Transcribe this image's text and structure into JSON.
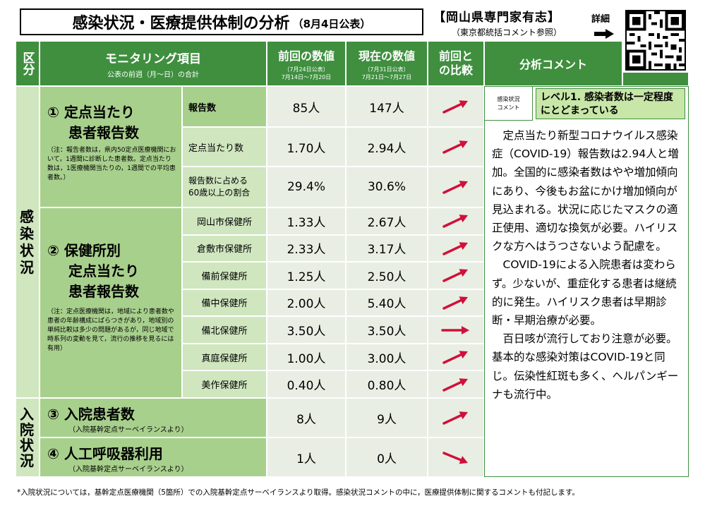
{
  "header": {
    "title": "感染状況・医療提供体制の分析",
    "date": "（8月4日公表）",
    "org": "【岡山県専門家有志】",
    "org_sub": "（東京都統括コメント参照）",
    "detail": "詳細"
  },
  "columns": {
    "category": "区分",
    "monitoring": "モニタリング項目",
    "monitoring_sub": "公表の前週（月～日）の合計",
    "previous": "前回の数値",
    "previous_sub1": "（7月24日公表）",
    "previous_sub2": "7月14日～7月20日",
    "current": "現在の数値",
    "current_sub1": "（7月31日公表）",
    "current_sub2": "7月21日～7月27日",
    "compare": "前回と\nの比較",
    "comment": "分析コメント"
  },
  "sections": {
    "infection": "感\n染\n状\n況",
    "hospital": "入\n院\n状\n況"
  },
  "item1": {
    "title": "① 定点当たり",
    "title2": "患者報告数",
    "note": "（注：報告者数は，県内50定点医療機関において，1週間に診断した患者数。定点当たり数は，1医療機関当たりの，1週間での平均患者数。）",
    "rows": [
      {
        "label": "報告数",
        "prev": "85人",
        "curr": "147人",
        "trend": "up"
      },
      {
        "label": "定点当たり数",
        "prev": "1.70人",
        "curr": "2.94人",
        "trend": "up"
      },
      {
        "label": "報告数に占める\n60歳以上の割合",
        "prev": "29.4%",
        "curr": "30.6%",
        "trend": "up"
      }
    ]
  },
  "item2": {
    "title": "② 保健所別",
    "title2": "定点当たり",
    "title3": "患者報告数",
    "note": "（注：定点医療機関は，地域により患者数や患者の年齢構成にばらつきがあり，地域別の単純比較は多少の問題があるが，同じ地域で時系列の変動を見て，流行の推移を見るには有用）",
    "rows": [
      {
        "label": "岡山市保健所",
        "prev": "1.33人",
        "curr": "2.67人",
        "trend": "up"
      },
      {
        "label": "倉敷市保健所",
        "prev": "2.33人",
        "curr": "3.17人",
        "trend": "up"
      },
      {
        "label": "備前保健所",
        "prev": "1.25人",
        "curr": "2.50人",
        "trend": "up"
      },
      {
        "label": "備中保健所",
        "prev": "2.00人",
        "curr": "5.40人",
        "trend": "up"
      },
      {
        "label": "備北保健所",
        "prev": "3.50人",
        "curr": "3.50人",
        "trend": "flat"
      },
      {
        "label": "真庭保健所",
        "prev": "1.00人",
        "curr": "3.00人",
        "trend": "up"
      },
      {
        "label": "美作保健所",
        "prev": "0.40人",
        "curr": "0.80人",
        "trend": "up"
      }
    ]
  },
  "item3": {
    "title": "③ 入院患者数",
    "note": "（入院基幹定点サーベイランスより）",
    "prev": "8人",
    "curr": "9人",
    "trend": "up"
  },
  "item4": {
    "title": "④ 人工呼吸器利用",
    "note": "（入院基幹定点サーベイランスより）",
    "prev": "1人",
    "curr": "0人",
    "trend": "down"
  },
  "comment": {
    "level_label": "感染状況\nコメント",
    "level_text": "レベル1. 感染者数は一定程度にとどまっている",
    "body": "　定点当たり新型コロナウイルス感染症（COVID-19）報告数は2.94人と増加。全国的に感染者数はやや増加傾向にあり、今後もお盆にかけ増加傾向が見込まれる。状況に応じたマスクの適正使用、適切な換気が必要。ハイリスクな方へはうつさないよう配慮を。\n　COVID-19による入院患者は変わらず。少ないが、重症化する患者は継続的に発生。ハイリスク患者は早期診断・早期治療が必要。\n　百日咳が流行しており注意が必要。基本的な感染対策はCOVID-19と同じ。伝染性紅斑も多く、ヘルパンギーナも流行中。"
  },
  "footer": "*入院状況については，基幹定点医療機関（5箇所）での入院基幹定点サーベイランスより取得。感染状況コメントの中に，医療提供体制に関するコメントも付記します。",
  "colors": {
    "header_green": "#3f8f3f",
    "light_green": "#cfe6bf",
    "mid_green": "#a8d08d",
    "arrow_red": "#d0103a",
    "level_box": "#c8e6a8"
  }
}
